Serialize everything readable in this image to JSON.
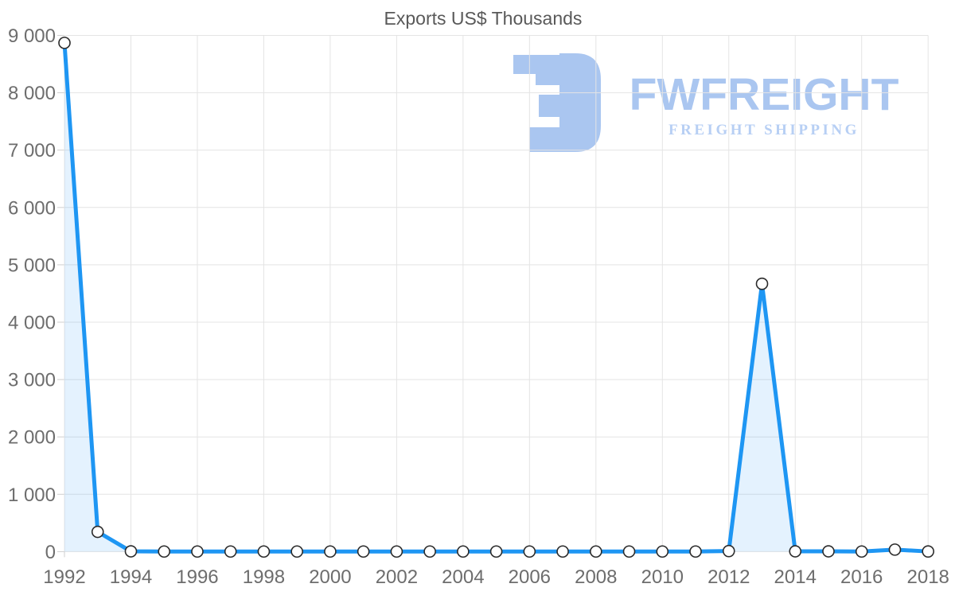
{
  "chart_data": {
    "type": "area",
    "title": "Exports US$ Thousands",
    "xlabel": "",
    "ylabel": "",
    "x": [
      1992,
      1993,
      1994,
      1995,
      1996,
      1997,
      1998,
      1999,
      2000,
      2001,
      2002,
      2003,
      2004,
      2005,
      2006,
      2007,
      2008,
      2009,
      2010,
      2011,
      2012,
      2013,
      2014,
      2015,
      2016,
      2017,
      2018
    ],
    "values": [
      8870,
      345,
      5,
      2,
      2,
      2,
      2,
      2,
      2,
      2,
      2,
      2,
      2,
      2,
      2,
      2,
      2,
      2,
      2,
      2,
      10,
      4670,
      5,
      5,
      2,
      35,
      3
    ],
    "ylim": [
      0,
      9000
    ],
    "y_tick_step": 1000,
    "y_tick_labels": [
      "0",
      "1 000",
      "2 000",
      "3 000",
      "4 000",
      "5 000",
      "6 000",
      "7 000",
      "8 000",
      "9 000"
    ],
    "x_tick_labels": [
      "1992",
      "1994",
      "1996",
      "1998",
      "2000",
      "2002",
      "2004",
      "2006",
      "2008",
      "2010",
      "2012",
      "2014",
      "2016",
      "2018"
    ],
    "grid": true,
    "legend": "none",
    "marker": "circle"
  },
  "style": {
    "line_color": "#1e96f3",
    "fill_color": "rgba(30, 150, 243, 0.12)",
    "marker_fill": "#ffffff",
    "marker_stroke": "#2b2b2b",
    "grid_color": "#e4e4e4",
    "tick_color": "#cfcfcf",
    "axis_text_color": "#6d6d6d",
    "title_color": "#595959"
  },
  "watermark": {
    "brand": "FWFREIGHT",
    "tagline": "FREIGHT SHIPPING",
    "brand_color": "#a6c3f0",
    "tagline_color": "#b4cdf4",
    "mark_icon": "fwfreight-logo-mark"
  }
}
